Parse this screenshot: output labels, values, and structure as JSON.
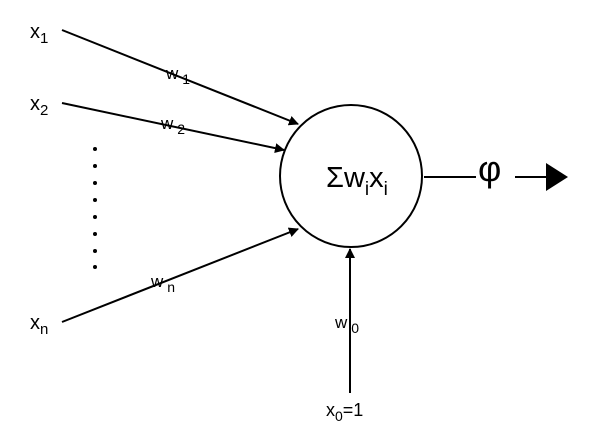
{
  "inputs": [
    {
      "base": "x",
      "sub": "1"
    },
    {
      "base": "x",
      "sub": "2"
    },
    {
      "base": "x",
      "sub": "n"
    }
  ],
  "weights": [
    {
      "base": "w",
      "sub": "1"
    },
    {
      "base": "w",
      "sub": "2"
    },
    {
      "base": "w",
      "sub": "n"
    }
  ],
  "bias": {
    "weight": {
      "base": "w",
      "sub": "0"
    },
    "input": {
      "base": "x",
      "sub": "0",
      "rest": "=1"
    }
  },
  "neuron": {
    "symbol": "Σ",
    "w": "w",
    "w_sub": "i",
    "x": "x",
    "x_sub": "i"
  },
  "activation": {
    "symbol": "φ"
  },
  "colors": {
    "line": "#000000",
    "background": "#ffffff"
  }
}
